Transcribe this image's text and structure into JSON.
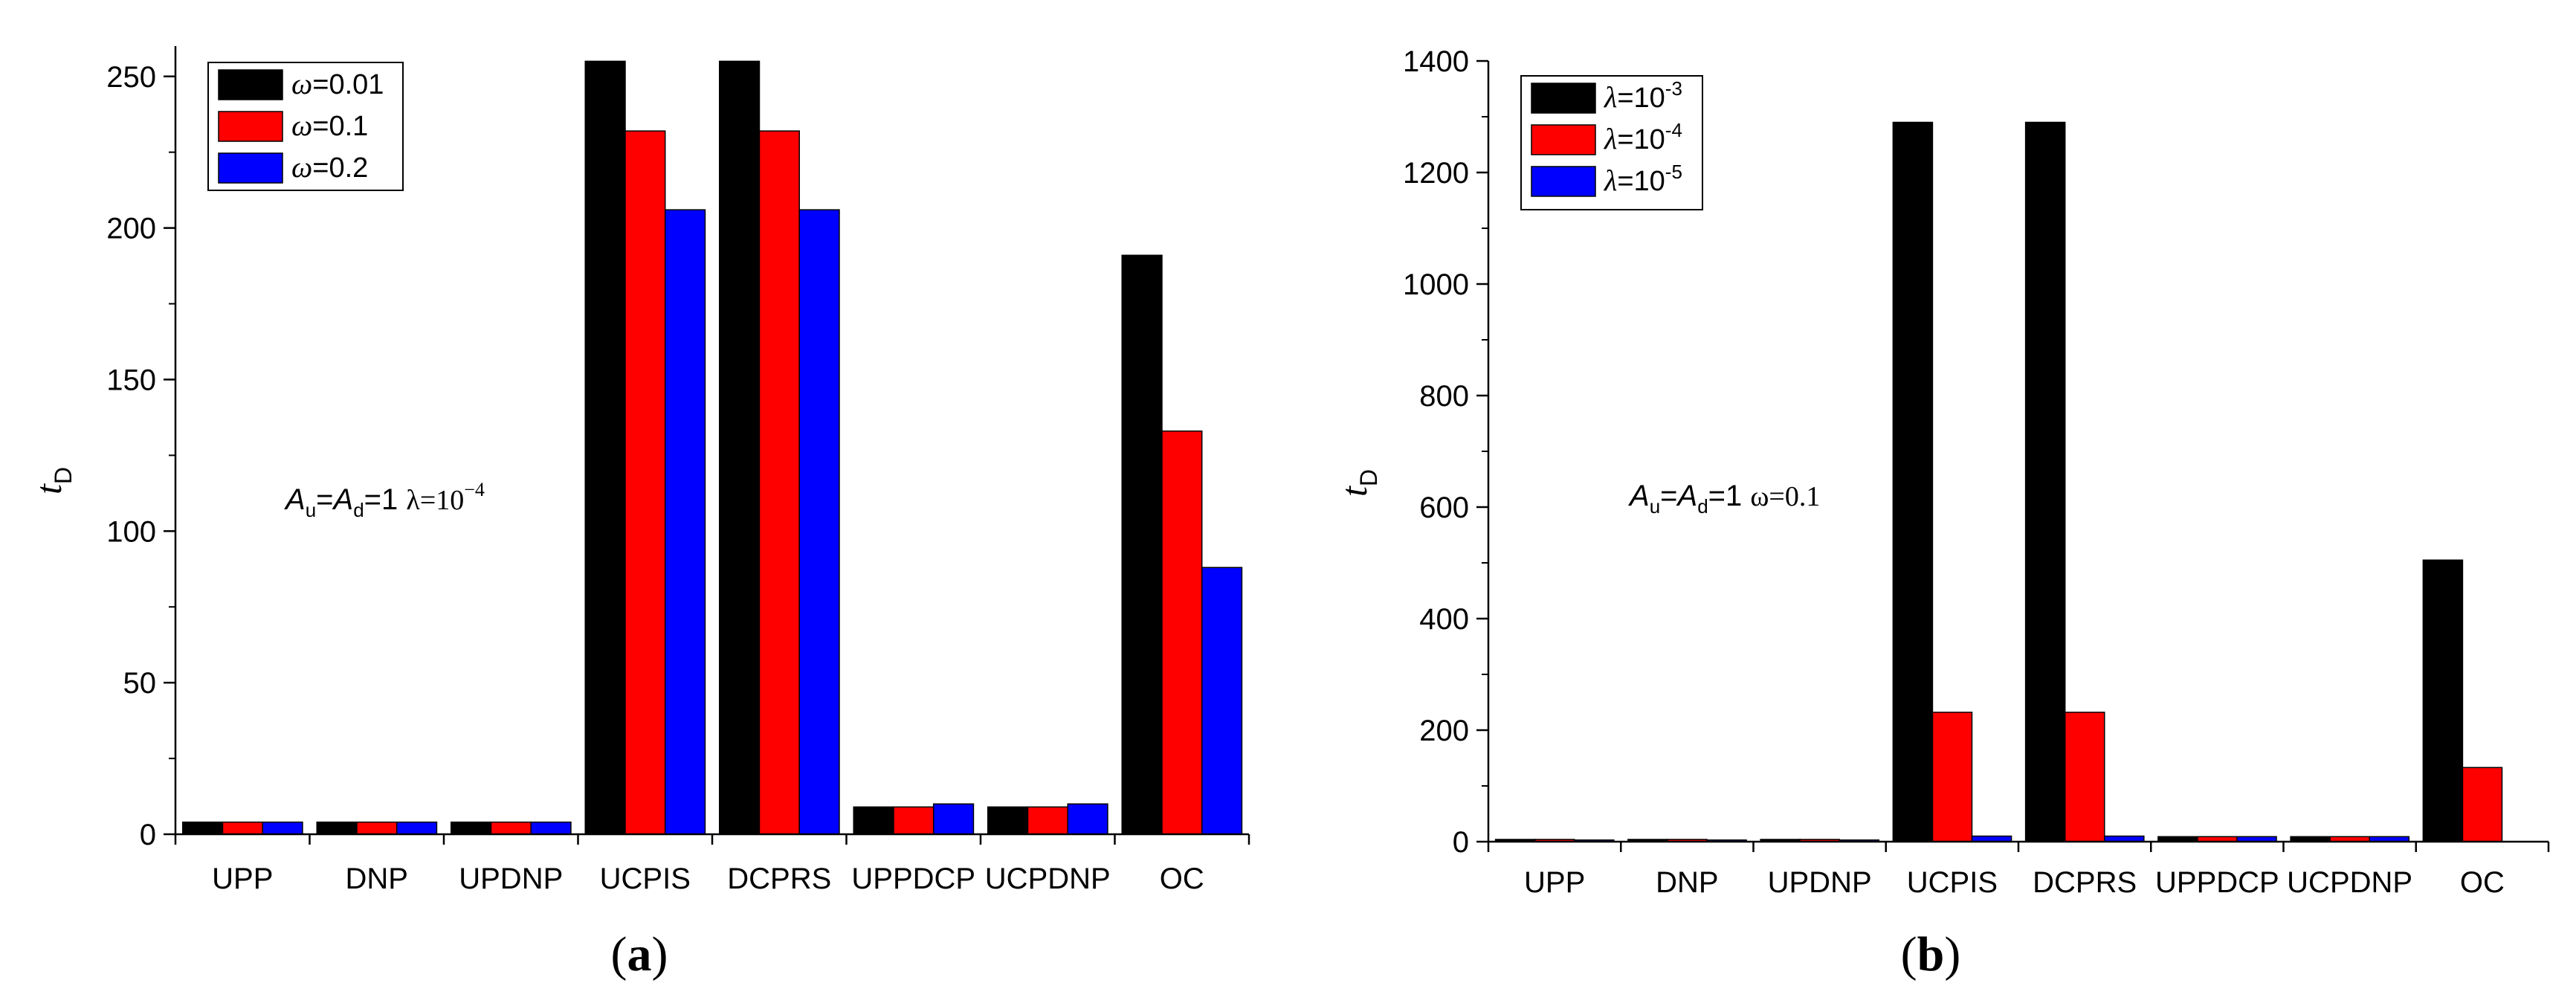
{
  "chart_data": [
    {
      "type": "bar",
      "panel_label": "a",
      "categories": [
        "UPP",
        "DNP",
        "UPDNP",
        "UCPIS",
        "DCPRS",
        "UPPDCP",
        "UCPDNP",
        "OC"
      ],
      "series": [
        {
          "name": "ω=0.01",
          "color": "#000000",
          "values": [
            4,
            4,
            4,
            255,
            255,
            9,
            9,
            191
          ]
        },
        {
          "name": "ω=0.1",
          "color": "#ff0000",
          "values": [
            4,
            4,
            4,
            232,
            232,
            9,
            9,
            133
          ]
        },
        {
          "name": "ω=0.2",
          "color": "#0000ff",
          "values": [
            4,
            4,
            4,
            206,
            206,
            10,
            10,
            88
          ]
        }
      ],
      "ylabel": {
        "main": "t",
        "sub": "D"
      },
      "yticks": [
        0,
        50,
        100,
        150,
        200,
        250
      ],
      "ylim": [
        0,
        260
      ],
      "legend_position": "top-left",
      "annotation": {
        "a": "A",
        "a_sub": "u",
        "eq1": "=",
        "b": "A",
        "b_sub": "d",
        "eq2": "=1  ",
        "param": "λ=10",
        "param_sup": "−4"
      },
      "grid": false
    },
    {
      "type": "bar",
      "panel_label": "b",
      "categories": [
        "UPP",
        "DNP",
        "UPDNP",
        "UCPIS",
        "DCPRS",
        "UPPDCP",
        "UCPDNP",
        "OC"
      ],
      "series": [
        {
          "name": "λ=10^-3",
          "color": "#000000",
          "values": [
            4,
            4,
            4,
            1290,
            1290,
            9,
            9,
            505
          ]
        },
        {
          "name": "λ=10^-4",
          "color": "#ff0000",
          "values": [
            4,
            4,
            4,
            232,
            232,
            9,
            9,
            133
          ]
        },
        {
          "name": "λ=10^-5",
          "color": "#0000ff",
          "values": [
            3,
            3,
            3,
            10,
            10,
            9,
            9,
            0
          ]
        }
      ],
      "ylabel": {
        "main": "t",
        "sub": "D"
      },
      "yticks": [
        0,
        200,
        400,
        600,
        800,
        1000,
        1200,
        1400
      ],
      "ylim": [
        0,
        1400
      ],
      "legend_position": "top-left",
      "annotation": {
        "a": "A",
        "a_sub": "u",
        "eq1": "=",
        "b": "A",
        "b_sub": "d",
        "eq2": "=1  ",
        "param": "ω=0.1",
        "param_sup": ""
      },
      "grid": false
    }
  ],
  "legend": {
    "a": [
      {
        "sym": "ω",
        "rest": "=0.01",
        "sup": ""
      },
      {
        "sym": "ω",
        "rest": "=0.1",
        "sup": ""
      },
      {
        "sym": "ω",
        "rest": "=0.2",
        "sup": ""
      }
    ],
    "b": [
      {
        "sym": "λ",
        "rest": "=10",
        "sup": "-3"
      },
      {
        "sym": "λ",
        "rest": "=10",
        "sup": "-4"
      },
      {
        "sym": "λ",
        "rest": "=10",
        "sup": "-5"
      }
    ]
  }
}
